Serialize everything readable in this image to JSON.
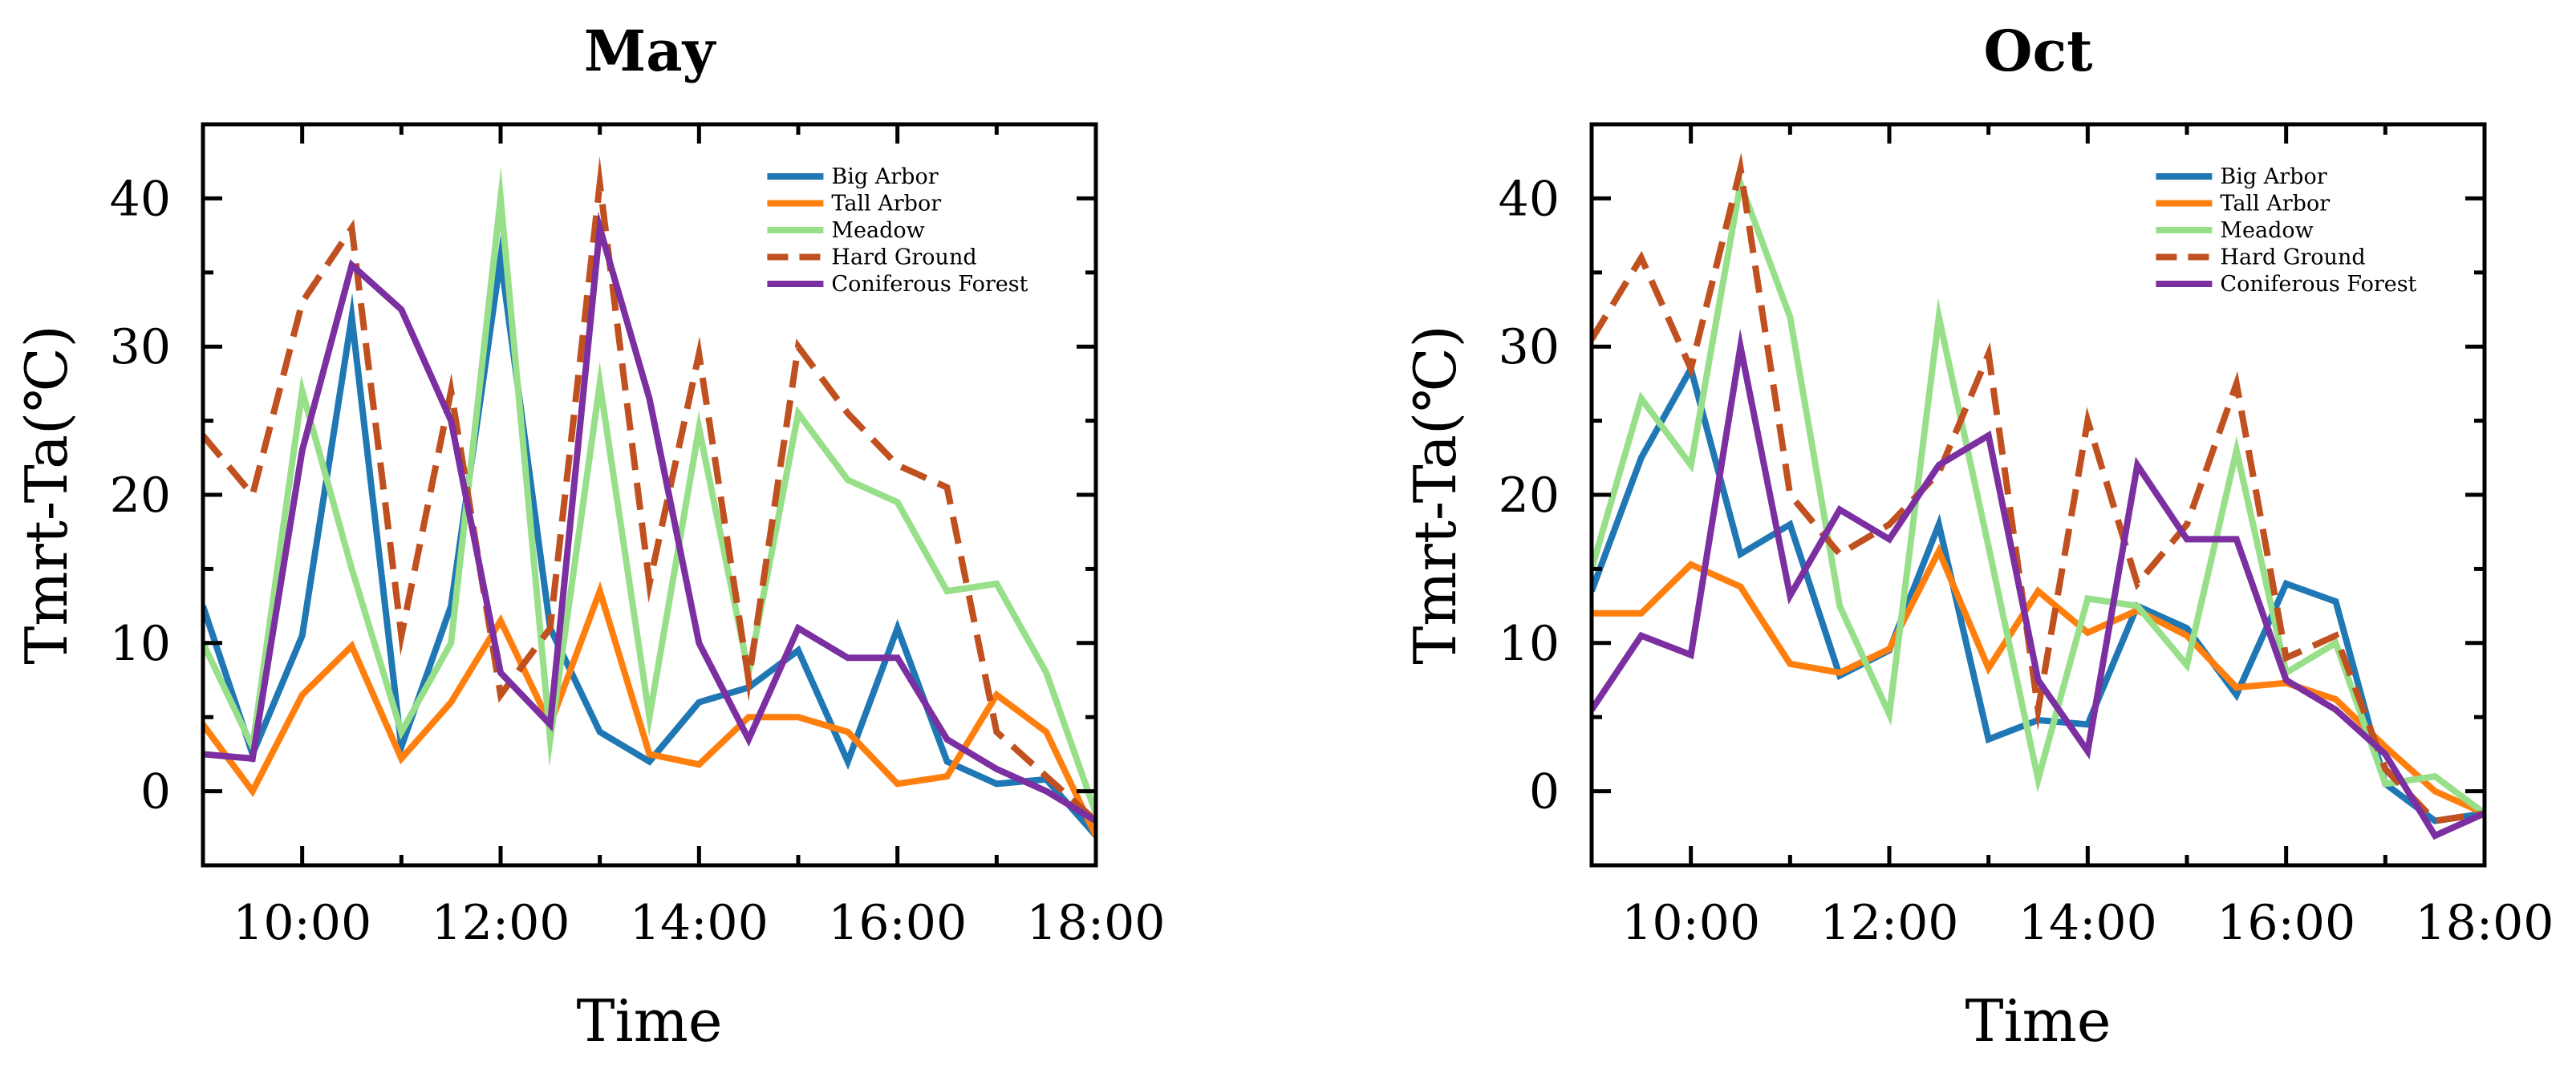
{
  "chart_data": [
    {
      "type": "line",
      "title": "May",
      "xlabel": "Time",
      "ylabel": "Tmrt-Ta(℃)",
      "xlim": [
        9,
        18
      ],
      "ylim": [
        -5,
        45
      ],
      "xticks": [
        10,
        12,
        14,
        16,
        18
      ],
      "xtick_labels": [
        "10:00",
        "12:00",
        "14:00",
        "16:00",
        "18:00"
      ],
      "yticks": [
        0,
        10,
        20,
        30,
        40
      ],
      "ytick_labels": [
        "0",
        "10",
        "20",
        "30",
        "40"
      ],
      "legend_position": "top-right",
      "x": [
        9,
        9.5,
        10,
        10.5,
        11,
        11.5,
        12,
        12.5,
        13,
        13.5,
        14,
        14.5,
        15,
        15.5,
        16,
        16.5,
        17,
        17.5,
        18
      ],
      "series": [
        {
          "name": "Big Arbor",
          "color": "#1f77b4",
          "dash": false,
          "values": [
            12.5,
            2.5,
            10.5,
            32,
            3,
            12.5,
            36,
            11,
            4,
            2,
            6,
            7,
            9.5,
            2,
            11,
            2,
            0.5,
            0.8,
            -3
          ]
        },
        {
          "name": "Tall Arbor",
          "color": "#ff7f0e",
          "dash": false,
          "values": [
            4.5,
            0,
            6.5,
            9.8,
            2.2,
            6,
            11.5,
            4.5,
            13.5,
            2.5,
            1.8,
            5,
            5,
            4,
            0.5,
            1,
            6.5,
            4,
            -3
          ]
        },
        {
          "name": "Meadow",
          "color": "#98df8a",
          "dash": false,
          "values": [
            10,
            3,
            27,
            15,
            4,
            10,
            40,
            3.5,
            27.5,
            5,
            24.5,
            8,
            25.5,
            21,
            19.5,
            13.5,
            14,
            8,
            -1.5
          ]
        },
        {
          "name": "Hard Ground",
          "color": "#c0501f",
          "dash": true,
          "values": [
            24,
            20,
            33,
            38,
            10.5,
            27,
            6.5,
            11,
            41,
            14,
            29.5,
            7.5,
            30,
            25.5,
            22,
            20.5,
            4,
            1,
            -2
          ]
        },
        {
          "name": "Coniferous Forest",
          "color": "#7b2fa0",
          "dash": false,
          "values": [
            2.5,
            2.2,
            23,
            35.5,
            32.5,
            25,
            8,
            4.5,
            38,
            26.5,
            10,
            3.5,
            11,
            9,
            9,
            3.5,
            1.5,
            0,
            -2
          ]
        }
      ]
    },
    {
      "type": "line",
      "title": "Oct",
      "xlabel": "Time",
      "ylabel": "Tmrt-Ta(℃)",
      "xlim": [
        9,
        18
      ],
      "ylim": [
        -5,
        45
      ],
      "xticks": [
        10,
        12,
        14,
        16,
        18
      ],
      "xtick_labels": [
        "10:00",
        "12:00",
        "14:00",
        "16:00",
        "18:00"
      ],
      "yticks": [
        0,
        10,
        20,
        30,
        40
      ],
      "ytick_labels": [
        "0",
        "10",
        "20",
        "30",
        "40"
      ],
      "legend_position": "top-right",
      "x": [
        9,
        9.5,
        10,
        10.5,
        11,
        11.5,
        12,
        12.5,
        13,
        13.5,
        14,
        14.5,
        15,
        15.5,
        16,
        16.5,
        17,
        17.5,
        18
      ],
      "series": [
        {
          "name": "Big Arbor",
          "color": "#1f77b4",
          "dash": false,
          "values": [
            13.5,
            22.5,
            28.5,
            16,
            18,
            7.8,
            9.5,
            18,
            3.5,
            4.8,
            4.5,
            12.5,
            11,
            6.5,
            14,
            12.8,
            0.5,
            -2,
            -1.5
          ]
        },
        {
          "name": "Tall Arbor",
          "color": "#ff7f0e",
          "dash": false,
          "values": [
            12,
            12,
            15.3,
            13.8,
            8.6,
            8,
            9.6,
            16.2,
            8.3,
            13.5,
            10.7,
            12.2,
            10.5,
            7,
            7.3,
            6.2,
            3,
            0,
            -1.5
          ]
        },
        {
          "name": "Meadow",
          "color": "#98df8a",
          "dash": false,
          "values": [
            15,
            26.5,
            22,
            41,
            32,
            12.5,
            5.2,
            32,
            16.5,
            0.8,
            13,
            12.5,
            8.5,
            23,
            8,
            10,
            0.5,
            1,
            -1.5
          ]
        },
        {
          "name": "Hard Ground",
          "color": "#c0501f",
          "dash": true,
          "values": [
            30.5,
            36,
            28.5,
            42,
            20,
            16,
            18,
            21.5,
            29.5,
            5.5,
            25,
            14,
            18,
            27.5,
            9,
            10.5,
            1.5,
            -2,
            -1.5
          ]
        },
        {
          "name": "Coniferous Forest",
          "color": "#7b2fa0",
          "dash": false,
          "values": [
            5.5,
            10.5,
            9.2,
            30,
            13.2,
            19,
            17,
            22,
            24,
            7.5,
            2.7,
            22,
            17,
            17,
            7.5,
            5.5,
            2.5,
            -3,
            -1.5
          ]
        }
      ]
    }
  ]
}
